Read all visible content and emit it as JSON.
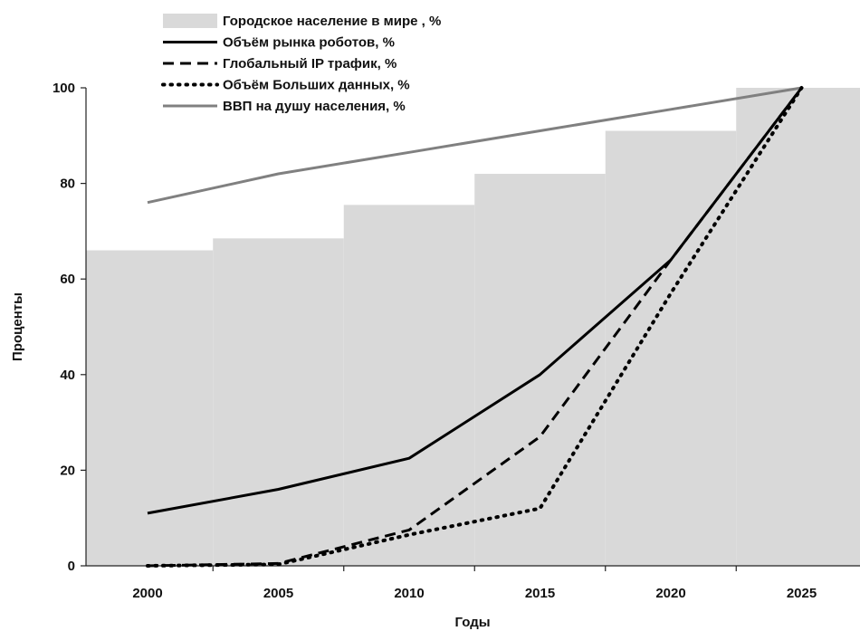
{
  "chart_data": {
    "type": "line",
    "title": "",
    "xlabel": "Годы",
    "ylabel": "Проценты",
    "categories": [
      "2000",
      "2005",
      "2010",
      "2015",
      "2020",
      "2025"
    ],
    "x": [
      2000,
      2005,
      2010,
      2015,
      2020,
      2025
    ],
    "ylim": [
      0,
      100
    ],
    "yticks": [
      "0",
      "20",
      "40",
      "60",
      "80",
      "100"
    ],
    "grid": false,
    "legend_position": "top",
    "series": [
      {
        "name": "Городское население в мире , %",
        "kind": "area-step",
        "color": "#d9d9d9",
        "values": [
          66,
          68.5,
          75.5,
          82,
          91,
          100
        ]
      },
      {
        "name": "Объём рынка роботов, %",
        "kind": "line",
        "style": "solid",
        "color": "#000000",
        "values": [
          11,
          16,
          22.5,
          40,
          64,
          100
        ]
      },
      {
        "name": "Глобальный IP трафик, %",
        "kind": "line",
        "style": "dashed",
        "color": "#000000",
        "values": [
          0,
          0.5,
          7.5,
          27,
          64,
          100
        ]
      },
      {
        "name": "Объём Больших данных, %",
        "kind": "line",
        "style": "dotted",
        "color": "#000000",
        "values": [
          0,
          0.3,
          6.5,
          12,
          57,
          100
        ]
      },
      {
        "name": "ВВП на душу населения, %",
        "kind": "line",
        "style": "solid",
        "color": "#808080",
        "values": [
          76,
          82,
          86.5,
          91,
          95.5,
          100
        ]
      }
    ]
  }
}
